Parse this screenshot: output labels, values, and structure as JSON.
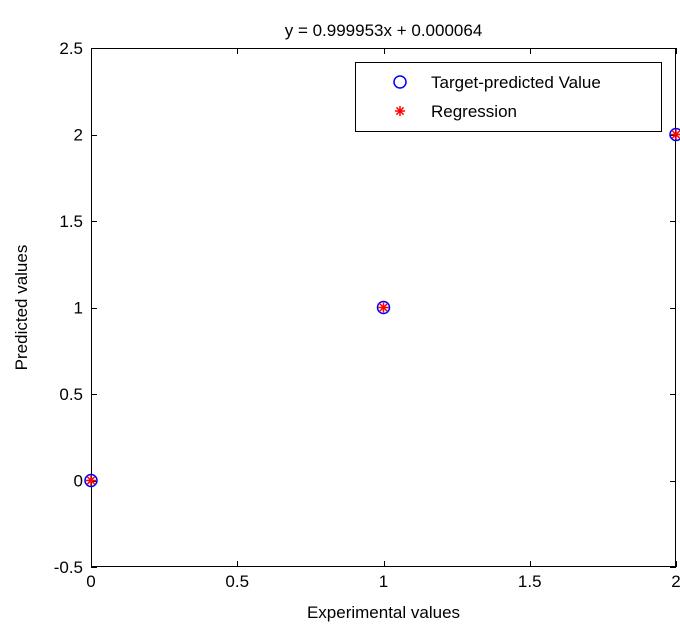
{
  "chart_data": {
    "type": "scatter",
    "title": "y = 0.999953x + 0.000064",
    "xlabel": "Experimental values",
    "ylabel": "Predicted values",
    "xlim": [
      0,
      2
    ],
    "ylim": [
      -0.5,
      2.5
    ],
    "xticks": [
      0,
      0.5,
      1,
      1.5,
      2
    ],
    "xtick_labels": [
      "0",
      "0.5",
      "1",
      "1.5",
      "2"
    ],
    "yticks": [
      -0.5,
      0,
      0.5,
      1,
      1.5,
      2,
      2.5
    ],
    "ytick_labels": [
      "-0.5",
      "0",
      "0.5",
      "1",
      "1.5",
      "2",
      "2.5"
    ],
    "grid": false,
    "legend_position": "top-right",
    "series": [
      {
        "name": "Target-predicted Value",
        "marker": "circle",
        "color": "#0000ff",
        "x": [
          0,
          1,
          2
        ],
        "y": [
          0,
          1,
          2
        ]
      },
      {
        "name": "Regression",
        "marker": "asterisk",
        "color": "#ff0000",
        "x": [
          0,
          1,
          2
        ],
        "y": [
          6.4e-05,
          1.000017,
          1.99997
        ]
      }
    ]
  }
}
